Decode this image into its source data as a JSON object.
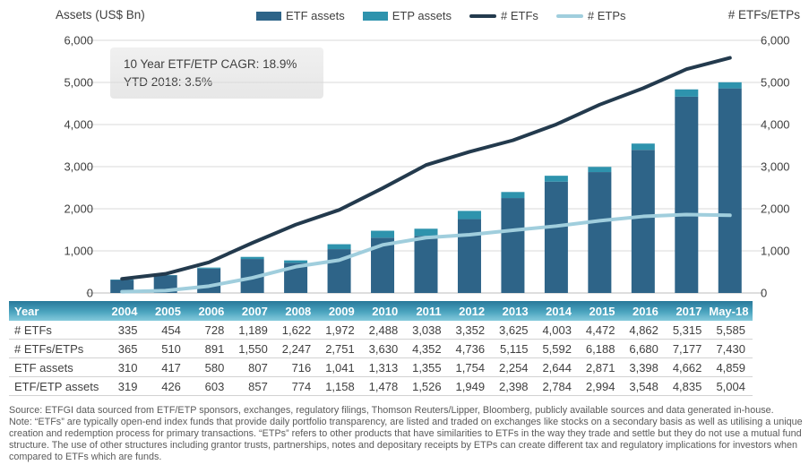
{
  "axes": {
    "left_title": "Assets (US$ Bn)",
    "right_title": "# ETFs/ETPs"
  },
  "legend": {
    "items": [
      {
        "label": "ETF assets",
        "type": "bar",
        "color": "#2e6488"
      },
      {
        "label": "ETP assets",
        "type": "bar",
        "color": "#2e93ad"
      },
      {
        "label": "# ETFs",
        "type": "line",
        "color": "#233a4d"
      },
      {
        "label": "# ETPs",
        "type": "line",
        "color": "#a0cedd"
      }
    ]
  },
  "annotation": {
    "line1": "10 Year ETF/ETP CAGR: 18.9%",
    "line2": "YTD 2018: 3.5%"
  },
  "chart_data": {
    "type": "bar+line combo (stacked bars on left axis, lines on right axis)",
    "categories": [
      "2004",
      "2005",
      "2006",
      "2007",
      "2008",
      "2009",
      "2010",
      "2011",
      "2012",
      "2013",
      "2014",
      "2015",
      "2016",
      "2017",
      "May-18"
    ],
    "bar_series": [
      {
        "name": "ETF assets",
        "stacked": true,
        "color": "#2e6488",
        "values": [
          310,
          417,
          580,
          807,
          716,
          1041,
          1313,
          1355,
          1754,
          2254,
          2644,
          2871,
          3398,
          4662,
          4859
        ]
      },
      {
        "name": "ETP assets",
        "stacked": true,
        "color": "#2e93ad",
        "values": [
          9,
          9,
          23,
          50,
          58,
          117,
          165,
          171,
          195,
          144,
          140,
          123,
          150,
          173,
          145
        ]
      }
    ],
    "bar_totals_etf_etp_assets": [
      319,
      426,
      603,
      857,
      774,
      1158,
      1478,
      1526,
      1949,
      2398,
      2784,
      2994,
      3548,
      4835,
      5004
    ],
    "line_series": [
      {
        "name": "# ETFs",
        "axis": "right",
        "color": "#233a4d",
        "values": [
          335,
          454,
          728,
          1189,
          1622,
          1972,
          2488,
          3038,
          3352,
          3625,
          4003,
          4472,
          4862,
          5315,
          5585
        ]
      },
      {
        "name": "# ETPs",
        "axis": "right",
        "color": "#a0cedd",
        "values": [
          30,
          56,
          163,
          361,
          625,
          779,
          1142,
          1314,
          1384,
          1490,
          1589,
          1716,
          1818,
          1862,
          1845
        ]
      }
    ],
    "left_axis": {
      "title": "Assets (US$ Bn)",
      "min": 0,
      "max": 6000,
      "step": 1000
    },
    "right_axis": {
      "title": "# ETFs/ETPs",
      "min": 0,
      "max": 6000,
      "step": 1000
    },
    "grid": "horizontal light-gray lines",
    "legend_position": "top",
    "annotation_text": "10 Year ETF/ETP CAGR: 18.9%  YTD 2018: 3.5%"
  },
  "table": {
    "header_label": "Year",
    "columns": [
      "2004",
      "2005",
      "2006",
      "2007",
      "2008",
      "2009",
      "2010",
      "2011",
      "2012",
      "2013",
      "2014",
      "2015",
      "2016",
      "2017",
      "May-18"
    ],
    "rows": [
      {
        "label": "# ETFs",
        "values": [
          335,
          454,
          728,
          1189,
          1622,
          1972,
          2488,
          3038,
          3352,
          3625,
          4003,
          4472,
          4862,
          5315,
          5585
        ]
      },
      {
        "label": "# ETFs/ETPs",
        "values": [
          365,
          510,
          891,
          1550,
          2247,
          2751,
          3630,
          4352,
          4736,
          5115,
          5592,
          6188,
          6680,
          7177,
          7430
        ]
      },
      {
        "label": "ETF assets",
        "values": [
          310,
          417,
          580,
          807,
          716,
          1041,
          1313,
          1355,
          1754,
          2254,
          2644,
          2871,
          3398,
          4662,
          4859
        ]
      },
      {
        "label": "ETF/ETP assets",
        "values": [
          319,
          426,
          603,
          857,
          774,
          1158,
          1478,
          1526,
          1949,
          2398,
          2784,
          2994,
          3548,
          4835,
          5004
        ]
      }
    ]
  },
  "notes": {
    "source": "Source: ETFGI data sourced from ETF/ETP sponsors, exchanges, regulatory filings, Thomson Reuters/Lipper, Bloomberg, publicly available sources and data generated in-house.",
    "note": "Note: “ETFs” are typically open-end index funds that provide daily portfolio transparency, are listed and traded on exchanges like stocks on a secondary basis as well as utilising a unique creation and redemption process for primary transactions. “ETPs” refers to other products that have similarities to ETFs in the way they trade and settle but they do not use a mutual fund structure. The use of other structures including grantor trusts, partnerships, notes and depositary receipts by ETPs can create different tax and regulatory implications for investors when compared to ETFs which are funds."
  }
}
